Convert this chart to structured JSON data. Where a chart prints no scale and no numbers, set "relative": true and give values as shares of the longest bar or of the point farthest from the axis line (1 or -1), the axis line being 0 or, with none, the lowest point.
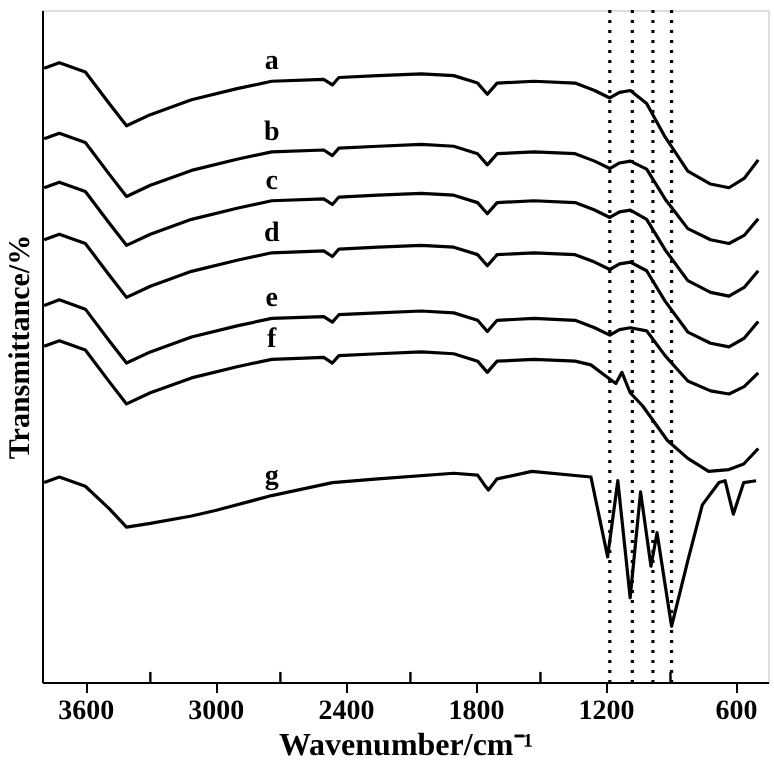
{
  "chart_data": {
    "type": "line",
    "relative": true,
    "xlabel": "Wavenumber/cm⁻¹",
    "ylabel": "Transmittance/%",
    "xlim": [
      3800,
      450
    ],
    "xticks": [
      3600,
      {
        "value": 3300,
        "label": null
      },
      3000,
      {
        "value": 2700,
        "label": null
      },
      2400,
      {
        "value": 2100,
        "label": null
      },
      1800,
      {
        "value": 1500,
        "label": null
      },
      1200,
      {
        "value": 900,
        "label": null
      },
      600
    ],
    "x": [
      3790,
      3720,
      3600,
      3490,
      3410,
      3300,
      3110,
      2900,
      2740,
      2500,
      2460,
      2430,
      2250,
      2050,
      1900,
      1790,
      1745,
      1700,
      1530,
      1340,
      1250,
      1180,
      1135,
      1085,
      1010,
      925,
      820,
      715,
      630,
      560,
      495
    ],
    "series": [
      {
        "name": "a",
        "color": "#000000",
        "values": [
          0.991,
          1.0,
          0.985,
          0.934,
          0.898,
          0.916,
          0.94,
          0.958,
          0.97,
          0.973,
          0.964,
          0.976,
          0.979,
          0.982,
          0.979,
          0.967,
          0.949,
          0.967,
          0.97,
          0.967,
          0.955,
          0.943,
          0.952,
          0.955,
          0.934,
          0.88,
          0.825,
          0.804,
          0.798,
          0.813,
          0.843
        ]
      },
      {
        "name": "b",
        "color": "#000000",
        "values": [
          0.877,
          0.886,
          0.871,
          0.82,
          0.784,
          0.802,
          0.826,
          0.844,
          0.856,
          0.859,
          0.85,
          0.862,
          0.865,
          0.868,
          0.865,
          0.853,
          0.835,
          0.853,
          0.856,
          0.853,
          0.841,
          0.829,
          0.838,
          0.841,
          0.828,
          0.78,
          0.732,
          0.714,
          0.708,
          0.721,
          0.748
        ]
      },
      {
        "name": "c",
        "color": "#000000",
        "values": [
          0.798,
          0.807,
          0.792,
          0.741,
          0.705,
          0.723,
          0.747,
          0.765,
          0.777,
          0.78,
          0.771,
          0.783,
          0.786,
          0.789,
          0.786,
          0.774,
          0.756,
          0.774,
          0.777,
          0.774,
          0.762,
          0.75,
          0.759,
          0.762,
          0.747,
          0.698,
          0.648,
          0.629,
          0.623,
          0.637,
          0.664
        ]
      },
      {
        "name": "d",
        "color": "#000000",
        "values": [
          0.714,
          0.723,
          0.708,
          0.657,
          0.621,
          0.639,
          0.663,
          0.681,
          0.693,
          0.696,
          0.687,
          0.699,
          0.702,
          0.705,
          0.702,
          0.69,
          0.672,
          0.69,
          0.693,
          0.69,
          0.678,
          0.666,
          0.675,
          0.678,
          0.664,
          0.615,
          0.565,
          0.547,
          0.541,
          0.555,
          0.582
        ]
      },
      {
        "name": "e",
        "color": "#000000",
        "values": [
          0.608,
          0.617,
          0.602,
          0.551,
          0.515,
          0.533,
          0.557,
          0.575,
          0.587,
          0.59,
          0.581,
          0.593,
          0.596,
          0.599,
          0.596,
          0.584,
          0.566,
          0.584,
          0.587,
          0.584,
          0.572,
          0.56,
          0.569,
          0.572,
          0.567,
          0.527,
          0.486,
          0.47,
          0.465,
          0.477,
          0.499
        ]
      },
      {
        "name": "f",
        "color": "#000000",
        "x": [
          3790,
          3720,
          3600,
          3490,
          3410,
          3300,
          3110,
          2900,
          2740,
          2500,
          2460,
          2430,
          2250,
          2050,
          1900,
          1790,
          1745,
          1700,
          1530,
          1340,
          1267,
          1210,
          1152,
          1124,
          1086,
          1029,
          914,
          820,
          724,
          630,
          562,
          495
        ],
        "values": [
          0.542,
          0.551,
          0.536,
          0.485,
          0.449,
          0.467,
          0.491,
          0.509,
          0.521,
          0.524,
          0.515,
          0.527,
          0.53,
          0.533,
          0.53,
          0.518,
          0.5,
          0.518,
          0.521,
          0.518,
          0.512,
          0.497,
          0.482,
          0.5,
          0.467,
          0.446,
          0.39,
          0.361,
          0.34,
          0.343,
          0.352,
          0.377
        ]
      },
      {
        "name": "g",
        "color": "#000000",
        "x": [
          3790,
          3720,
          3600,
          3490,
          3410,
          3300,
          3110,
          3000,
          2740,
          2460,
          2250,
          1900,
          1790,
          1760,
          1740,
          1700,
          1540,
          1267,
          1190,
          1143,
          1086,
          1038,
          990,
          962,
          895,
          820,
          753,
          676,
          648,
          610,
          562,
          505
        ],
        "values": [
          0.322,
          0.331,
          0.316,
          0.28,
          0.25,
          0.256,
          0.268,
          0.277,
          0.301,
          0.322,
          0.328,
          0.337,
          0.334,
          0.319,
          0.31,
          0.328,
          0.34,
          0.331,
          0.202,
          0.325,
          0.136,
          0.307,
          0.187,
          0.241,
          0.09,
          0.196,
          0.286,
          0.322,
          0.325,
          0.271,
          0.322,
          0.325
        ]
      }
    ],
    "ref_lines": [
      {
        "axis": "x",
        "value": 1180,
        "line_style": "dotted"
      },
      {
        "axis": "x",
        "value": 1076,
        "line_style": "dotted"
      },
      {
        "axis": "x",
        "value": 981,
        "line_style": "dotted"
      },
      {
        "axis": "x",
        "value": 895,
        "line_style": "dotted"
      }
    ],
    "grid": false,
    "legend": false,
    "marker": "none",
    "line_style": "solid"
  }
}
